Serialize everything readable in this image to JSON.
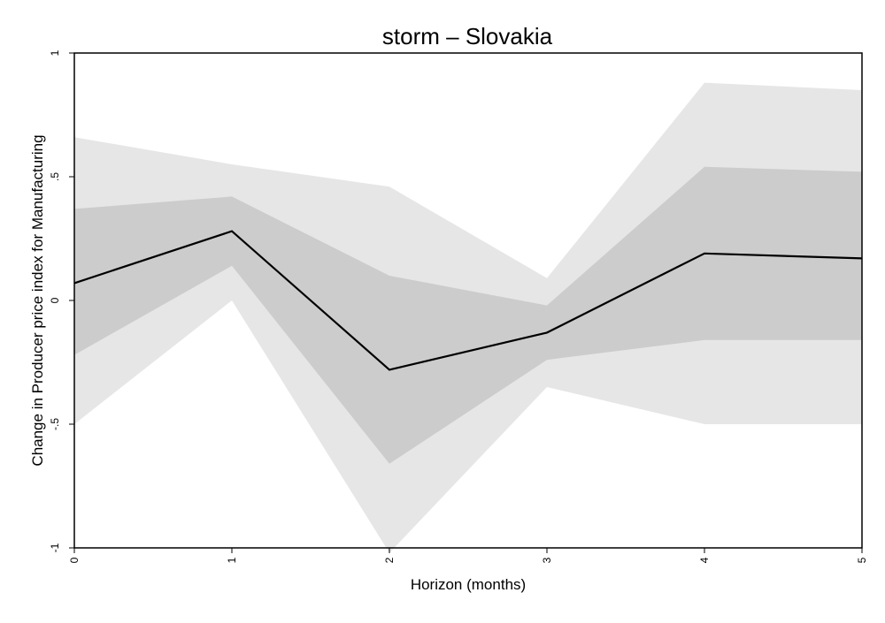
{
  "chart_data": {
    "type": "area",
    "title": "storm – Slovakia",
    "xlabel": "Horizon (months)",
    "ylabel": "Change in Producer price index for Manufacturing",
    "xlim": [
      0,
      5
    ],
    "ylim": [
      -1,
      1
    ],
    "x_ticks": [
      "0",
      "1",
      "2",
      "3",
      "4",
      "5"
    ],
    "y_ticks": [
      "-1",
      "-.5",
      "0",
      ".5",
      "1"
    ],
    "y_tick_values": [
      -1,
      -0.5,
      0,
      0.5,
      1
    ],
    "grid": false,
    "legend": "none",
    "x": [
      0,
      1,
      2,
      3,
      4,
      5
    ],
    "series": [
      {
        "kind": "band",
        "lower": [
          -0.5,
          0.0,
          -1.02,
          -0.35,
          -0.5,
          -0.5
        ],
        "upper": [
          0.66,
          0.55,
          0.46,
          0.09,
          0.88,
          0.85
        ],
        "color": "#e6e6e6"
      },
      {
        "kind": "band",
        "lower": [
          -0.22,
          0.14,
          -0.66,
          -0.24,
          -0.16,
          -0.16
        ],
        "upper": [
          0.37,
          0.42,
          0.1,
          -0.02,
          0.54,
          0.52
        ],
        "color": "#cccccc"
      },
      {
        "kind": "line",
        "values": [
          0.07,
          0.28,
          -0.28,
          -0.13,
          0.19,
          0.17
        ],
        "color": "#000000"
      }
    ],
    "colors": {
      "outer_band": "#e6e6e6",
      "inner_band": "#cccccc",
      "line": "#000000",
      "frame": "#000000",
      "background": "#ffffff"
    }
  }
}
